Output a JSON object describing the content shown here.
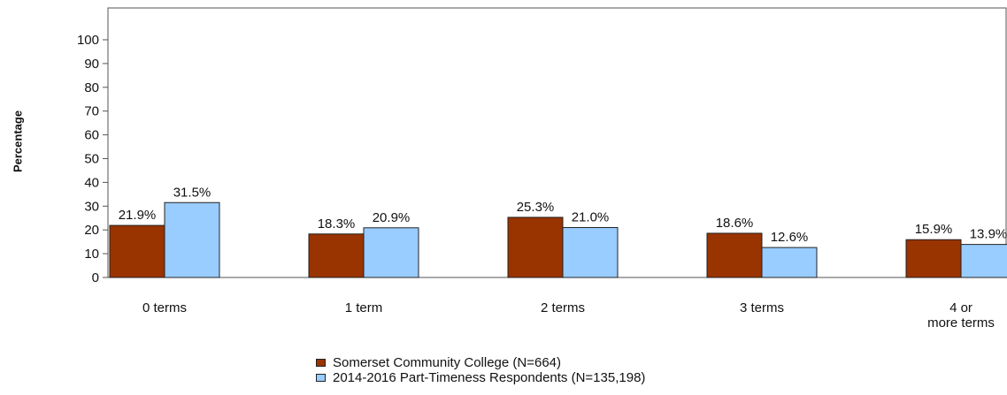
{
  "chart_data": {
    "type": "bar",
    "ylabel": "Percentage",
    "ylim": [
      0,
      100
    ],
    "yticks": [
      0,
      10,
      20,
      30,
      40,
      50,
      60,
      70,
      80,
      90,
      100
    ],
    "categories": [
      "0 terms",
      "1 term",
      "2 terms",
      "3 terms",
      "4 or more terms"
    ],
    "category_lines": [
      [
        "0 terms"
      ],
      [
        "1 term"
      ],
      [
        "2 terms"
      ],
      [
        "3 terms"
      ],
      [
        "4 or",
        "more terms"
      ]
    ],
    "series": [
      {
        "name": "Somerset Community College (N=664)",
        "color": "#993300",
        "values": [
          21.9,
          18.3,
          25.3,
          18.6,
          15.9
        ],
        "labels": [
          "21.9%",
          "18.3%",
          "25.3%",
          "18.6%",
          "15.9%"
        ]
      },
      {
        "name": "2014-2016 Part-Timeness Respondents (N=135,198)",
        "color": "#99ccff",
        "values": [
          31.5,
          20.9,
          21.0,
          12.6,
          13.9
        ],
        "labels": [
          "31.5%",
          "20.9%",
          "21.0%",
          "12.6%",
          "13.9%"
        ]
      }
    ],
    "legend_position": "bottom"
  }
}
